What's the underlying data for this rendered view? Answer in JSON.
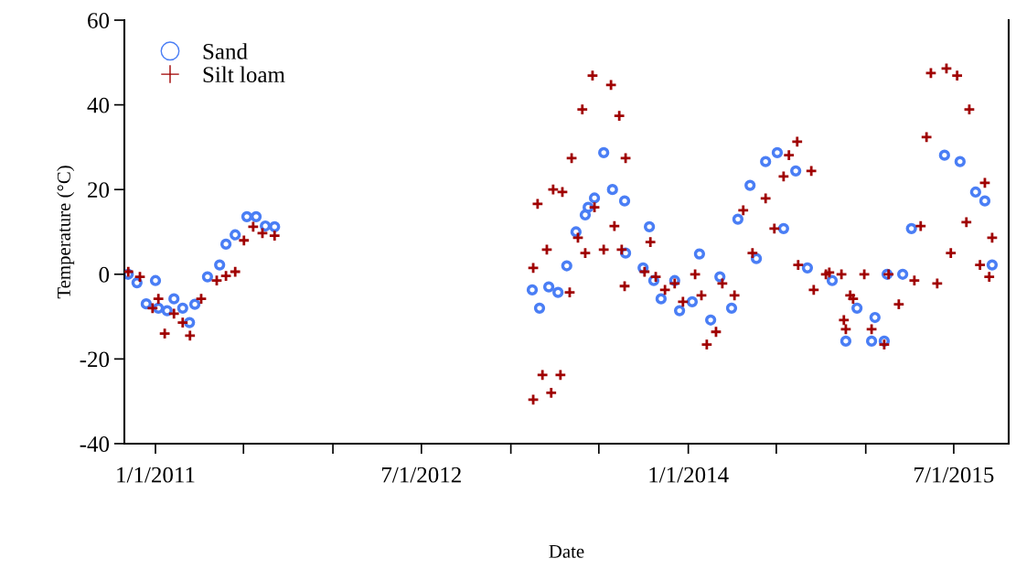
{
  "chart_data": {
    "type": "scatter",
    "xlabel": "Date",
    "ylabel": "Temperature (°C)",
    "xlim": [
      "2010-10-29",
      "2015-10-22"
    ],
    "ylim": [
      -40,
      60
    ],
    "yticks": [
      -40,
      -20,
      0,
      20,
      40,
      60
    ],
    "xticks": [
      {
        "value": "2011-01-01",
        "label": "1/1/2011"
      },
      {
        "value": "2011-07-01",
        "label": null
      },
      {
        "value": "2012-01-01",
        "label": null
      },
      {
        "value": "2012-07-01",
        "label": "7/1/2012"
      },
      {
        "value": "2013-01-01",
        "label": null
      },
      {
        "value": "2013-07-01",
        "label": null
      },
      {
        "value": "2014-01-01",
        "label": "1/1/2014"
      },
      {
        "value": "2014-07-01",
        "label": null
      },
      {
        "value": "2015-01-01",
        "label": null
      },
      {
        "value": "2015-07-01",
        "label": "7/1/2015"
      }
    ],
    "grid": false,
    "legend": "top left",
    "series": [
      {
        "name": "Sand",
        "color": "#4a7ef5",
        "marker": "circle",
        "x": [
          "2010-11-06",
          "2010-11-24",
          "2010-12-13",
          "2011-01-01",
          "2011-01-07",
          "2011-01-25",
          "2011-02-08",
          "2011-02-26",
          "2011-03-12",
          "2011-03-23",
          "2011-04-18",
          "2011-05-13",
          "2011-05-26",
          "2011-06-14",
          "2011-07-08",
          "2011-07-27",
          "2011-08-15",
          "2011-09-03",
          "2013-02-14",
          "2013-03-01",
          "2013-03-20",
          "2013-04-08",
          "2013-04-26",
          "2013-05-15",
          "2013-06-03",
          "2013-06-09",
          "2013-06-22",
          "2013-07-11",
          "2013-07-29",
          "2013-08-23",
          "2013-08-25",
          "2013-09-30",
          "2013-10-13",
          "2013-10-22",
          "2013-11-06",
          "2013-12-04",
          "2013-12-14",
          "2014-01-09",
          "2014-01-24",
          "2014-02-16",
          "2014-03-07",
          "2014-03-31",
          "2014-04-13",
          "2014-05-08",
          "2014-05-21",
          "2014-06-09",
          "2014-07-03",
          "2014-07-16",
          "2014-08-10",
          "2014-09-03",
          "2014-10-24",
          "2014-11-21",
          "2014-12-14",
          "2015-01-13",
          "2015-01-20",
          "2015-02-08",
          "2015-02-14",
          "2015-03-18",
          "2015-04-05",
          "2015-06-12",
          "2015-07-14",
          "2015-08-15",
          "2015-09-03",
          "2015-09-18"
        ],
        "values": [
          0,
          -2,
          -7,
          -1.5,
          -8,
          -8.6,
          -5.8,
          -8,
          -11.4,
          -7.1,
          -0.6,
          2.2,
          7.1,
          9.3,
          13.6,
          13.6,
          11.4,
          11.2,
          -3.7,
          -8,
          -3,
          -4.3,
          2,
          10,
          14,
          15.8,
          18,
          28.7,
          20,
          17.3,
          5,
          1.5,
          11.2,
          -1.5,
          -5.8,
          -1.5,
          -8.6,
          -6.5,
          4.8,
          -10.8,
          -0.6,
          -8,
          13,
          21,
          3.7,
          26.6,
          28.7,
          10.8,
          24.4,
          1.5,
          -1.5,
          -15.8,
          -8,
          -15.8,
          -10.2,
          -15.8,
          0,
          0,
          10.8,
          28.1,
          26.6,
          19.4,
          17.3,
          2.2
        ]
      },
      {
        "name": "Silt loam",
        "color": "#a00000",
        "marker": "cross",
        "x": [
          "2010-11-06",
          "2010-11-30",
          "2010-12-26",
          "2011-01-07",
          "2011-01-20",
          "2011-02-08",
          "2011-02-26",
          "2011-03-13",
          "2011-04-05",
          "2011-05-07",
          "2011-05-26",
          "2011-06-14",
          "2011-07-02",
          "2011-07-21",
          "2011-08-09",
          "2011-09-03",
          "2013-02-16",
          "2013-02-16",
          "2013-02-25",
          "2013-03-07",
          "2013-03-16",
          "2013-03-25",
          "2013-03-29",
          "2013-04-13",
          "2013-04-17",
          "2013-05-02",
          "2013-05-06",
          "2013-05-19",
          "2013-05-28",
          "2013-06-03",
          "2013-06-18",
          "2013-06-22",
          "2013-07-11",
          "2013-07-26",
          "2013-08-02",
          "2013-08-12",
          "2013-08-17",
          "2013-08-23",
          "2013-08-25",
          "2013-10-03",
          "2013-10-15",
          "2013-10-26",
          "2013-11-14",
          "2013-12-04",
          "2013-12-21",
          "2014-01-15",
          "2014-01-28",
          "2014-02-08",
          "2014-02-27",
          "2014-03-12",
          "2014-04-06",
          "2014-04-24",
          "2014-05-13",
          "2014-06-09",
          "2014-06-27",
          "2014-07-16",
          "2014-07-27",
          "2014-08-13",
          "2014-08-15",
          "2014-09-11",
          "2014-09-16",
          "2014-10-11",
          "2014-10-18",
          "2014-11-12",
          "2014-11-17",
          "2014-11-21",
          "2014-11-30",
          "2014-12-06",
          "2014-12-29",
          "2015-01-13",
          "2015-02-08",
          "2015-02-17",
          "2015-03-10",
          "2015-04-11",
          "2015-04-24",
          "2015-05-06",
          "2015-05-15",
          "2015-05-28",
          "2015-06-16",
          "2015-06-25",
          "2015-07-08",
          "2015-07-27",
          "2015-08-02",
          "2015-08-24",
          "2015-09-03",
          "2015-09-12",
          "2015-09-18"
        ],
        "values": [
          0.6,
          -0.6,
          -8,
          -5.8,
          -14,
          -9.3,
          -11.4,
          -14.5,
          -5.8,
          -1.5,
          -0.4,
          0.6,
          8,
          11.2,
          9.7,
          9.1,
          -29.6,
          1.5,
          16.6,
          -23.8,
          5.8,
          -28,
          20,
          -23.8,
          19.4,
          -4.3,
          27.4,
          8.6,
          38.9,
          5,
          46.9,
          15.8,
          5.8,
          44.7,
          11.4,
          37.4,
          5.8,
          -2.8,
          27.4,
          0.6,
          7.6,
          -0.6,
          -3.7,
          -2.2,
          -6.5,
          0,
          -5,
          -16.6,
          -13.6,
          -2.2,
          -5,
          15.1,
          5,
          17.9,
          10.8,
          23.1,
          28.1,
          31.3,
          2.2,
          24.4,
          -3.7,
          0,
          0.4,
          0,
          -10.8,
          -13,
          -5,
          -5.8,
          0,
          -13,
          -16.6,
          0,
          -7.1,
          -1.5,
          11.4,
          32.4,
          47.5,
          -2.2,
          48.6,
          5,
          46.9,
          12.3,
          38.9,
          2.2,
          21.6,
          -0.6,
          8.6
        ]
      }
    ]
  }
}
